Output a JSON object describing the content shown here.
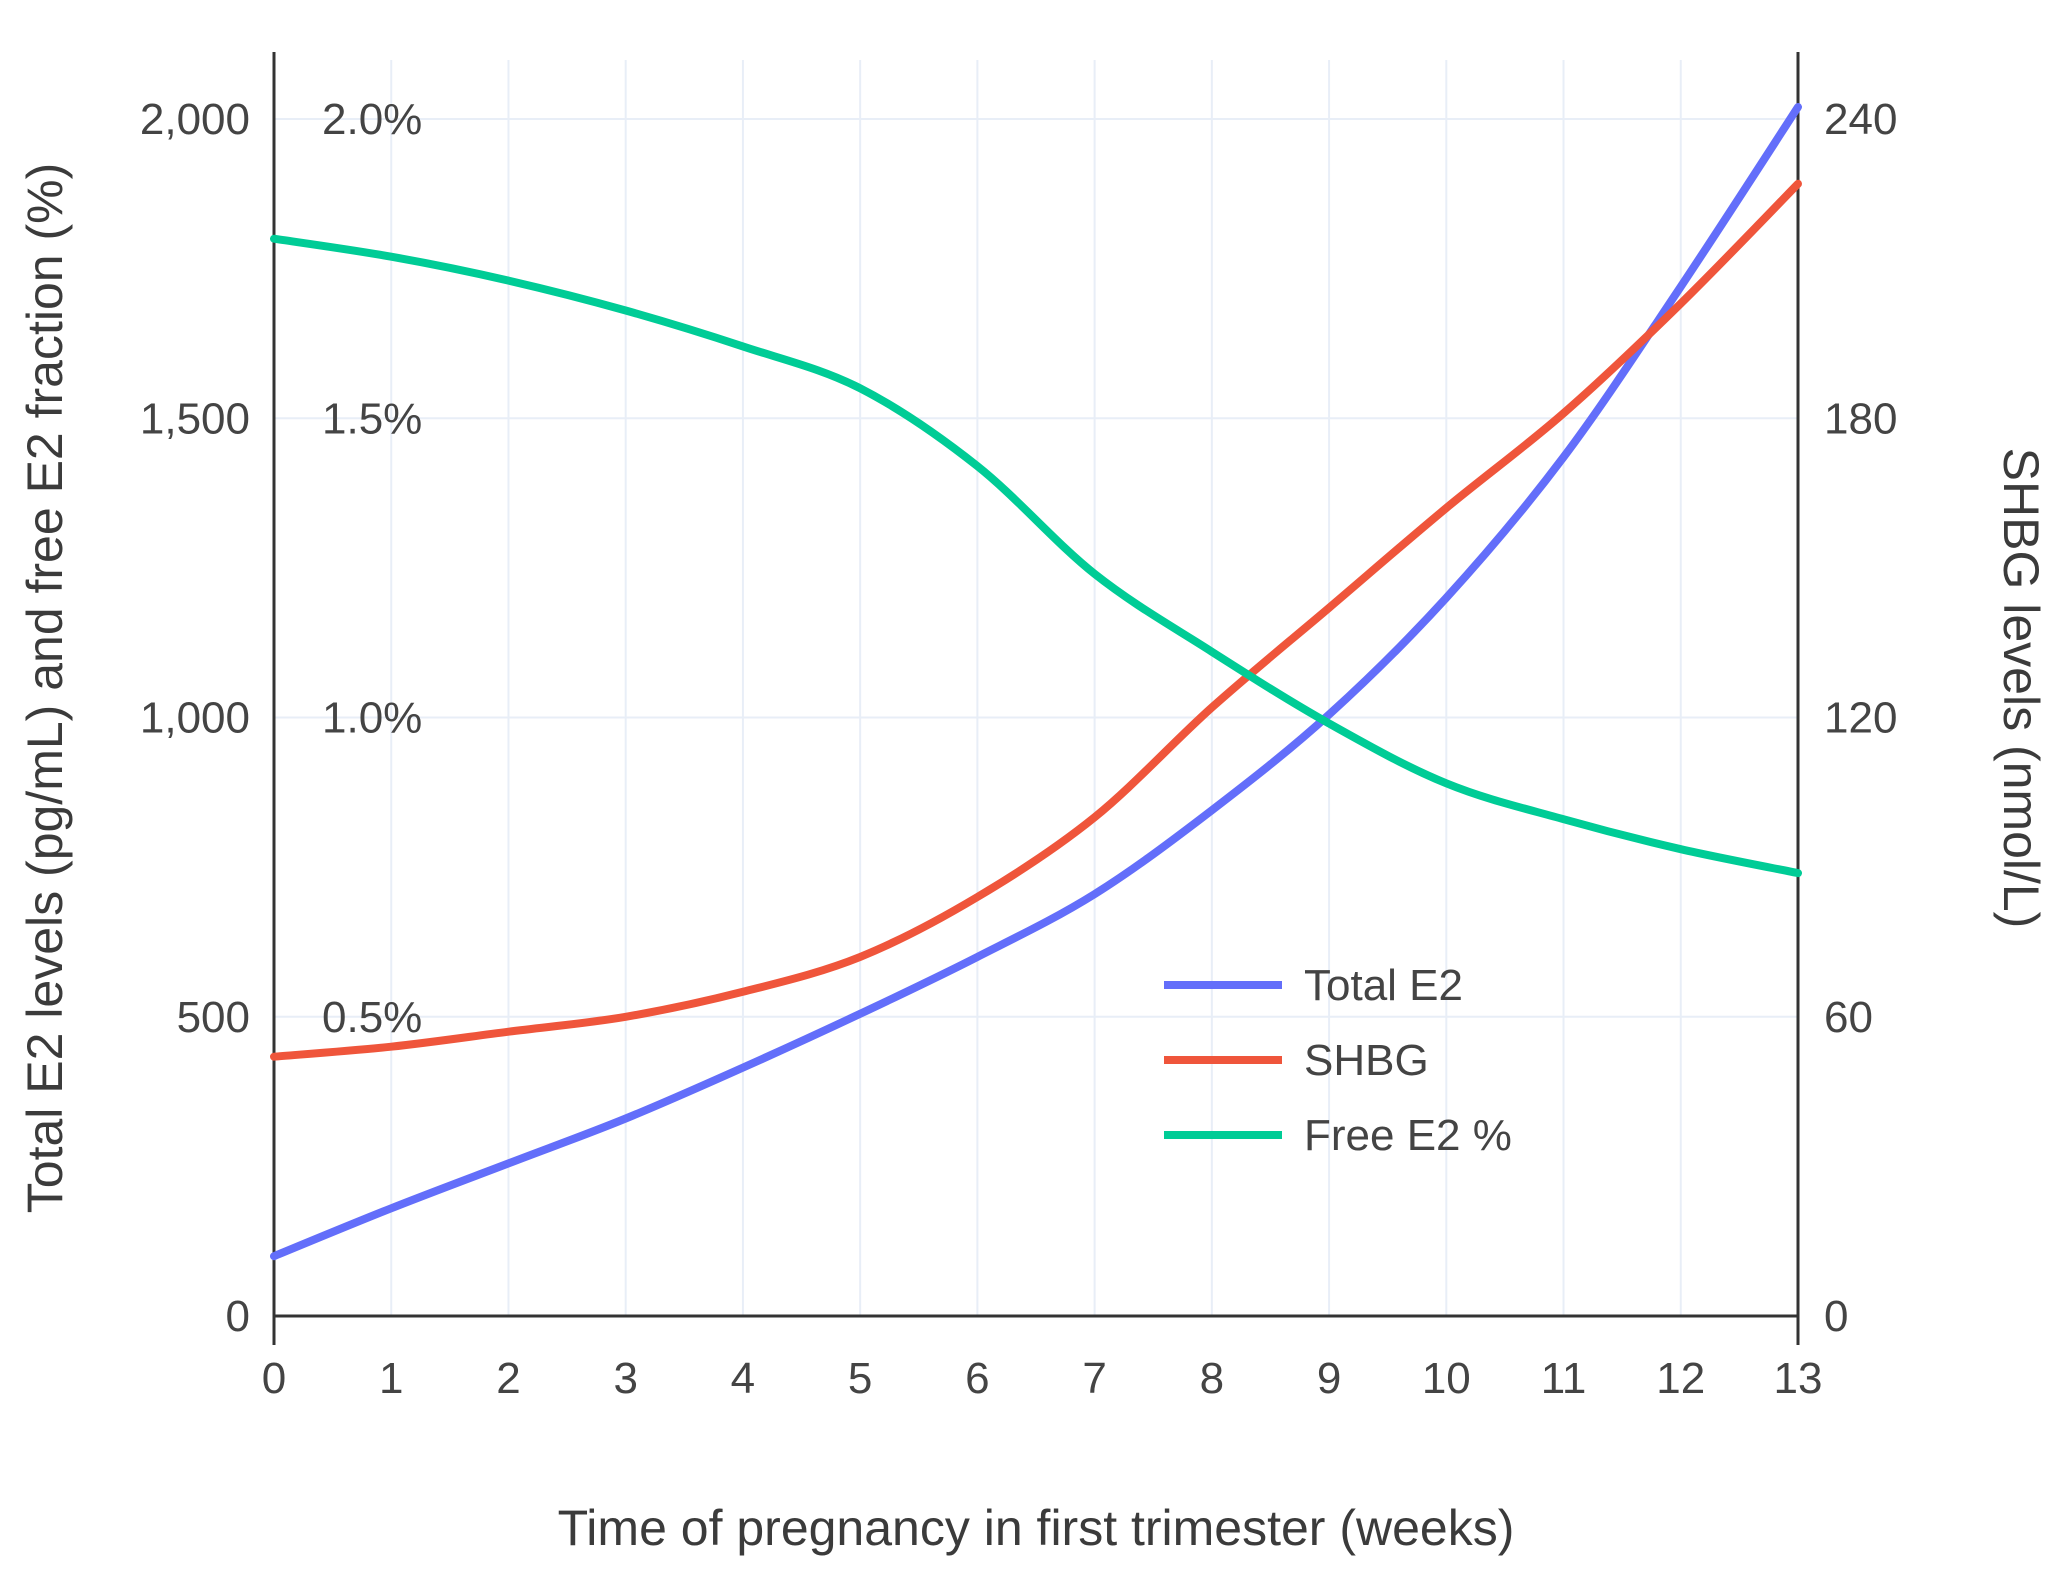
{
  "chart_data": {
    "type": "line",
    "title": "",
    "x_title": "Time of pregnancy in first trimester (weeks)",
    "y_left_title": "Total E2 levels (pg/mL) and free E2 fraction (%)",
    "y_right_title": "SHBG levels (nmol/L)",
    "x_range": [
      0,
      13
    ],
    "y_left_range": [
      0,
      2100
    ],
    "y_right_max": 240,
    "y_right_max_maps_to_left": 2000,
    "grid": true,
    "legend_position": "inside-lower-right",
    "x_ticks": [
      0,
      1,
      2,
      3,
      4,
      5,
      6,
      7,
      8,
      9,
      10,
      11,
      12,
      13
    ],
    "x_tick_labels": [
      "0",
      "1",
      "2",
      "3",
      "4",
      "5",
      "6",
      "7",
      "8",
      "9",
      "10",
      "11",
      "12",
      "13"
    ],
    "y_left_ticks": [
      {
        "value": 0,
        "label": "0"
      },
      {
        "value": 500,
        "label": "500"
      },
      {
        "value": 1000,
        "label": "1,000"
      },
      {
        "value": 1500,
        "label": "1,500"
      },
      {
        "value": 2000,
        "label": "2,000"
      }
    ],
    "free_e2_tick_labels": [
      {
        "value": 500,
        "label": "0.5%"
      },
      {
        "value": 1000,
        "label": "1.0%"
      },
      {
        "value": 1500,
        "label": "1.5%"
      },
      {
        "value": 2000,
        "label": "2.0%"
      }
    ],
    "y_right_ticks": [
      {
        "value": 0,
        "label": "0"
      },
      {
        "value": 60,
        "label": "60"
      },
      {
        "value": 120,
        "label": "120"
      },
      {
        "value": 180,
        "label": "180"
      },
      {
        "value": 240,
        "label": "240"
      }
    ],
    "series": [
      {
        "name": "Total E2",
        "axis": "left",
        "unit": "pg/mL",
        "color": "#636EFA",
        "x": [
          0,
          1,
          2,
          3,
          4,
          5,
          6,
          7,
          8,
          9,
          10,
          11,
          12,
          13
        ],
        "values": [
          100,
          180,
          255,
          330,
          415,
          505,
          600,
          705,
          845,
          1005,
          1200,
          1435,
          1720,
          2020
        ]
      },
      {
        "name": "SHBG",
        "axis": "right",
        "unit": "nmol/L",
        "color": "#EF553B",
        "x": [
          0,
          1,
          2,
          3,
          4,
          5,
          6,
          7,
          8,
          9,
          10,
          11,
          12,
          13
        ],
        "values": [
          52,
          54,
          57,
          60,
          65,
          72,
          84,
          100,
          122,
          142,
          162,
          181,
          203,
          227
        ]
      },
      {
        "name": "Free E2 %",
        "axis": "left-percent",
        "unit": "%",
        "color": "#00CC96",
        "x": [
          0,
          1,
          2,
          3,
          4,
          5,
          6,
          7,
          8,
          9,
          10,
          11,
          12,
          13
        ],
        "values": [
          1.8,
          1.77,
          1.73,
          1.68,
          1.62,
          1.55,
          1.42,
          1.24,
          1.11,
          0.99,
          0.89,
          0.83,
          0.78,
          0.74
        ]
      }
    ],
    "colors": {
      "grid": "#E8EEF7",
      "axis_line": "#333333",
      "tick_text": "#444444",
      "title_text": "#3B3B3B",
      "background": "#FFFFFF"
    }
  }
}
